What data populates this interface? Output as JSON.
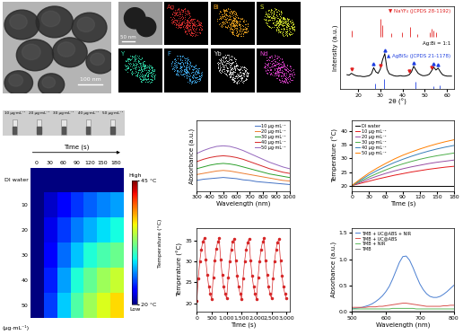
{
  "tem": {
    "scale_bar": "100 nm"
  },
  "eds": {
    "scale_bar": "50 nm",
    "maps": [
      {
        "label": "Ag",
        "color": "#e03030"
      },
      {
        "label": "Bi",
        "color": "#e8a020"
      },
      {
        "label": "S",
        "color": "#d8e830"
      },
      {
        "label": "Y",
        "color": "#30d8a8"
      },
      {
        "label": "F",
        "color": "#40a8e8"
      },
      {
        "label": "Yb",
        "color": "#e8e8e8"
      },
      {
        "label": "Nd",
        "color": "#d840c8"
      }
    ]
  },
  "vials": [
    "10 μg·mL⁻¹",
    "20 μg·mL⁻¹",
    "30 μg·mL⁻¹",
    "40 μg·mL⁻¹",
    "50 μg·mL⁻¹"
  ],
  "thermal_map": {
    "time_label": "Time (s)",
    "columns": [
      0,
      30,
      60,
      90,
      120,
      150,
      180
    ],
    "rows": [
      "DI water",
      "10",
      "20",
      "30",
      "40",
      "50"
    ],
    "unit": "(μg·mL⁻¹)",
    "cells": [
      [
        20,
        20,
        20,
        20,
        20,
        20,
        20
      ],
      [
        20,
        21.6,
        23.1,
        24.4,
        25.5,
        26.4,
        27.1
      ],
      [
        20,
        22.4,
        24.5,
        26.2,
        27.5,
        28.6,
        29.4
      ],
      [
        20,
        23.1,
        25.8,
        28.0,
        29.7,
        31.0,
        32.0
      ],
      [
        20,
        23.9,
        27.1,
        29.7,
        31.8,
        33.5,
        34.8
      ],
      [
        20,
        24.6,
        28.2,
        31.2,
        33.5,
        35.4,
        36.9
      ]
    ],
    "colorbar": {
      "range": [
        20,
        45
      ],
      "ticks": [
        {
          "value": 45,
          "label": "45 °C"
        },
        {
          "value": 20,
          "label": "20 °C"
        }
      ],
      "high": "High",
      "low": "Low",
      "label": "Temperature (°C)"
    }
  },
  "chart_data": [
    {
      "type": "line",
      "x_label": "2θ (°)",
      "y_label": "Intensity (a.u.)",
      "xlim": [
        12,
        63
      ],
      "xticks": [
        20,
        30,
        40,
        50,
        60
      ],
      "ylim": [
        0,
        1.75
      ],
      "tick_labels": "x",
      "x": [
        15,
        16,
        17,
        18,
        19,
        20,
        21,
        22,
        23,
        24,
        25,
        26,
        27,
        28,
        29,
        30,
        31,
        32,
        33,
        34,
        35,
        36,
        37,
        38,
        39,
        40,
        41,
        42,
        43,
        44,
        45,
        46,
        47,
        48,
        49,
        50,
        51,
        52,
        53,
        54,
        55,
        56,
        57,
        58,
        59,
        60,
        61,
        62
      ],
      "series": [
        {
          "name": "Ag:Bi = 1:1",
          "color": "#000000",
          "values": [
            0.3,
            0.29,
            0.33,
            0.3,
            0.28,
            0.27,
            0.27,
            0.26,
            0.26,
            0.27,
            0.28,
            0.32,
            0.45,
            0.36,
            0.33,
            0.42,
            0.62,
            0.75,
            0.42,
            0.32,
            0.3,
            0.28,
            0.27,
            0.27,
            0.28,
            0.27,
            0.27,
            0.28,
            0.3,
            0.36,
            0.48,
            0.4,
            0.33,
            0.3,
            0.28,
            0.28,
            0.29,
            0.31,
            0.38,
            0.46,
            0.4,
            0.44,
            0.36,
            0.3,
            0.28,
            0.27,
            0.27,
            0.27
          ]
        }
      ],
      "references": [
        {
          "name": "▼ NaYF₄ (JCPDS 28-1192)",
          "color": "#e02020",
          "marker": "triangle_down",
          "base": 1.1,
          "positions": [
            17.1,
            29.9,
            30.8,
            34.7,
            39.7,
            43.5,
            46.5,
            52.1,
            53.2,
            53.7,
            55.2
          ],
          "heights": [
            0.14,
            0.4,
            0.25,
            0.08,
            0.1,
            0.22,
            0.06,
            0.1,
            0.18,
            0.14,
            0.1
          ],
          "peaks": [
            17,
            30,
            43,
            53
          ]
        },
        {
          "name": "▲ AgBiS₂ (JCPDS 21-1178)",
          "color": "#2040e0",
          "marker": "triangle_up",
          "base": 0,
          "positions": [
            27.5,
            31.8,
            45.6,
            53.9,
            56.5
          ],
          "heights": [
            0.12,
            0.2,
            0.15,
            0.06,
            0.08
          ],
          "peaks": [
            27,
            32,
            45,
            54,
            56
          ]
        }
      ]
    },
    {
      "type": "line",
      "x_label": "Wavelength (nm)",
      "y_label": "Absorbance (a.u.)",
      "xlim": [
        300,
        1000
      ],
      "xticks": [
        300,
        400,
        500,
        600,
        700,
        800,
        900,
        1000
      ],
      "ylim": [
        0,
        1.2
      ],
      "tick_labels": "x",
      "legend": "upper right",
      "x": [
        300,
        350,
        400,
        450,
        500,
        550,
        600,
        650,
        700,
        750,
        800,
        850,
        900,
        950,
        1000
      ],
      "series": [
        {
          "name": "10 μg·mL⁻¹",
          "color": "#4472c4",
          "values": [
            0.18,
            0.2,
            0.21,
            0.22,
            0.23,
            0.22,
            0.21,
            0.19,
            0.18,
            0.16,
            0.15,
            0.14,
            0.13,
            0.12,
            0.11
          ]
        },
        {
          "name": "20 μg·mL⁻¹",
          "color": "#ed7d31",
          "values": [
            0.28,
            0.3,
            0.32,
            0.34,
            0.35,
            0.34,
            0.32,
            0.3,
            0.28,
            0.26,
            0.24,
            0.22,
            0.2,
            0.18,
            0.17
          ]
        },
        {
          "name": "30 μg·mL⁻¹",
          "color": "#2ca02c",
          "values": [
            0.38,
            0.41,
            0.44,
            0.46,
            0.47,
            0.46,
            0.44,
            0.41,
            0.38,
            0.35,
            0.32,
            0.29,
            0.27,
            0.25,
            0.23
          ]
        },
        {
          "name": "40 μg·mL⁻¹",
          "color": "#d62728",
          "values": [
            0.5,
            0.54,
            0.57,
            0.59,
            0.6,
            0.59,
            0.57,
            0.54,
            0.5,
            0.46,
            0.42,
            0.38,
            0.35,
            0.32,
            0.3
          ]
        },
        {
          "name": "50 μg·mL⁻¹",
          "color": "#9467bd",
          "values": [
            0.64,
            0.69,
            0.73,
            0.76,
            0.77,
            0.76,
            0.73,
            0.69,
            0.64,
            0.59,
            0.54,
            0.49,
            0.45,
            0.41,
            0.38
          ]
        }
      ]
    },
    {
      "type": "line",
      "x_label": "Time (s)",
      "y_label": "Temperature (°C)",
      "xlim": [
        0,
        180
      ],
      "xticks": [
        0,
        30,
        60,
        90,
        120,
        150,
        180
      ],
      "ylim": [
        18,
        44
      ],
      "yticks": [
        20,
        25,
        30,
        35,
        40
      ],
      "legend": "upper left",
      "x": [
        0,
        15,
        30,
        45,
        60,
        75,
        90,
        105,
        120,
        135,
        150,
        165,
        180
      ],
      "series": [
        {
          "name": "DI water",
          "color": "#000000",
          "values": [
            20,
            20,
            20,
            20,
            20,
            20,
            20,
            20,
            20,
            20,
            20,
            20,
            20
          ]
        },
        {
          "name": "10 μg·mL⁻¹",
          "color": "#e41a1c",
          "values": [
            20,
            20.8,
            21.6,
            22.4,
            23.1,
            23.8,
            24.4,
            25.0,
            25.5,
            26.0,
            26.4,
            26.8,
            27.1
          ]
        },
        {
          "name": "20 μg·mL⁻¹",
          "color": "#984ea3",
          "values": [
            20,
            21.2,
            22.4,
            23.5,
            24.5,
            25.4,
            26.2,
            26.9,
            27.5,
            28.1,
            28.6,
            29.0,
            29.4
          ]
        },
        {
          "name": "30 μg·mL⁻¹",
          "color": "#4daf4a",
          "values": [
            20,
            21.6,
            23.1,
            24.5,
            25.8,
            27.0,
            28.0,
            28.9,
            29.7,
            30.4,
            31.0,
            31.5,
            32.0
          ]
        },
        {
          "name": "40 μg·mL⁻¹",
          "color": "#377eb8",
          "values": [
            20,
            22.0,
            23.9,
            25.6,
            27.1,
            28.5,
            29.7,
            30.8,
            31.8,
            32.7,
            33.5,
            34.2,
            34.8
          ]
        },
        {
          "name": "50 μg·mL⁻¹",
          "color": "#ff7f00",
          "values": [
            20,
            22.4,
            24.6,
            26.5,
            28.2,
            29.8,
            31.2,
            32.4,
            33.5,
            34.5,
            35.4,
            36.2,
            36.9
          ]
        }
      ]
    },
    {
      "type": "line",
      "x_label": "Time (s)",
      "y_label": "Temperature (°C)",
      "xlim": [
        0,
        3100
      ],
      "xticks": [
        0,
        500,
        {
          "value": 1000,
          "label": "1,000"
        },
        {
          "value": 1500,
          "label": "1,500"
        },
        {
          "value": 2000,
          "label": "2,000"
        },
        {
          "value": 2500,
          "label": "2,500"
        },
        {
          "value": 3000,
          "label": "3,000"
        }
      ],
      "ylim": [
        18,
        38
      ],
      "yticks": [
        20,
        25,
        30,
        35
      ],
      "color": "#d62728",
      "marker": "circle",
      "line_style": "solid",
      "x": [
        0,
        50,
        100,
        150,
        200,
        250,
        300,
        350,
        400,
        450,
        500,
        550,
        600,
        650,
        700,
        750,
        800,
        850,
        900,
        950,
        1000,
        1050,
        1100,
        1150,
        1200,
        1250,
        1300,
        1350,
        1400,
        1450,
        1500,
        1550,
        1600,
        1650,
        1700,
        1750,
        1800,
        1850,
        1900,
        1950,
        2000,
        2050,
        2100,
        2150,
        2200,
        2250,
        2300,
        2350,
        2400,
        2450,
        2500,
        2550,
        2600,
        2650,
        2700,
        2750,
        2800,
        2850,
        2900,
        2950,
        3000
      ],
      "values": [
        20.5,
        26.0,
        30.0,
        32.8,
        34.6,
        35.6,
        30.5,
        26.8,
        24.0,
        22.2,
        21.0,
        26.2,
        30.1,
        32.9,
        34.7,
        35.5,
        30.4,
        26.7,
        24.0,
        22.3,
        21.1,
        26.1,
        30.0,
        32.8,
        34.6,
        35.4,
        30.3,
        26.6,
        23.9,
        22.2,
        21.0,
        26.0,
        29.9,
        32.7,
        34.5,
        35.4,
        30.2,
        26.6,
        23.9,
        22.2,
        21.0,
        26.1,
        30.0,
        32.8,
        34.6,
        35.5,
        30.3,
        26.7,
        24.0,
        22.3,
        21.1,
        26.0,
        29.9,
        32.7,
        34.5,
        35.3,
        30.2,
        26.6,
        23.9,
        22.2,
        21.1
      ]
    },
    {
      "type": "line",
      "x_label": "Wavelength (nm)",
      "y_label": "Absorbance (a.u.)",
      "xlim": [
        500,
        800
      ],
      "xticks": [
        500,
        600,
        700,
        800
      ],
      "ylim": [
        0,
        1.6
      ],
      "yticks": [
        {
          "value": 0.0,
          "label": "0.0"
        },
        {
          "value": 0.5,
          "label": "0.5"
        },
        {
          "value": 1.0,
          "label": "1.0"
        },
        {
          "value": 1.5,
          "label": "1.5"
        }
      ],
      "legend": "upper left",
      "x": [
        500,
        510,
        520,
        530,
        540,
        550,
        560,
        570,
        580,
        590,
        600,
        610,
        620,
        630,
        640,
        650,
        660,
        670,
        680,
        690,
        700,
        710,
        720,
        730,
        740,
        750,
        760,
        770,
        780,
        790,
        800
      ],
      "series": [
        {
          "name": "TMB + UC@ABS + NIR",
          "color": "#4a7fd1",
          "values": [
            0.05,
            0.06,
            0.07,
            0.08,
            0.1,
            0.12,
            0.15,
            0.19,
            0.24,
            0.3,
            0.38,
            0.48,
            0.62,
            0.78,
            0.94,
            1.05,
            1.06,
            0.98,
            0.84,
            0.68,
            0.53,
            0.42,
            0.34,
            0.29,
            0.27,
            0.27,
            0.29,
            0.33,
            0.38,
            0.44,
            0.5
          ]
        },
        {
          "name": "TMB + UC@ABS",
          "color": "#d9534f",
          "values": [
            0.08,
            0.08,
            0.08,
            0.08,
            0.08,
            0.09,
            0.09,
            0.09,
            0.1,
            0.1,
            0.11,
            0.12,
            0.13,
            0.14,
            0.15,
            0.16,
            0.16,
            0.15,
            0.14,
            0.13,
            0.12,
            0.11,
            0.1,
            0.1,
            0.1,
            0.1,
            0.1,
            0.11,
            0.11,
            0.12,
            0.12
          ]
        },
        {
          "name": "TMB + NIR",
          "color": "#5cb85c",
          "values": [
            0.05,
            0.05,
            0.05,
            0.05,
            0.05,
            0.05,
            0.05,
            0.05,
            0.05,
            0.05,
            0.05,
            0.05,
            0.06,
            0.06,
            0.06,
            0.06,
            0.06,
            0.06,
            0.06,
            0.05,
            0.05,
            0.05,
            0.05,
            0.05,
            0.05,
            0.05,
            0.05,
            0.05,
            0.05,
            0.05,
            0.05
          ]
        },
        {
          "name": "TMB",
          "color": "#888888",
          "values": [
            0.02,
            0.02,
            0.02,
            0.02,
            0.02,
            0.02,
            0.02,
            0.02,
            0.02,
            0.02,
            0.02,
            0.02,
            0.02,
            0.02,
            0.02,
            0.02,
            0.02,
            0.02,
            0.02,
            0.02,
            0.02,
            0.02,
            0.02,
            0.02,
            0.02,
            0.02,
            0.02,
            0.02,
            0.02,
            0.02,
            0.02
          ]
        }
      ]
    }
  ]
}
